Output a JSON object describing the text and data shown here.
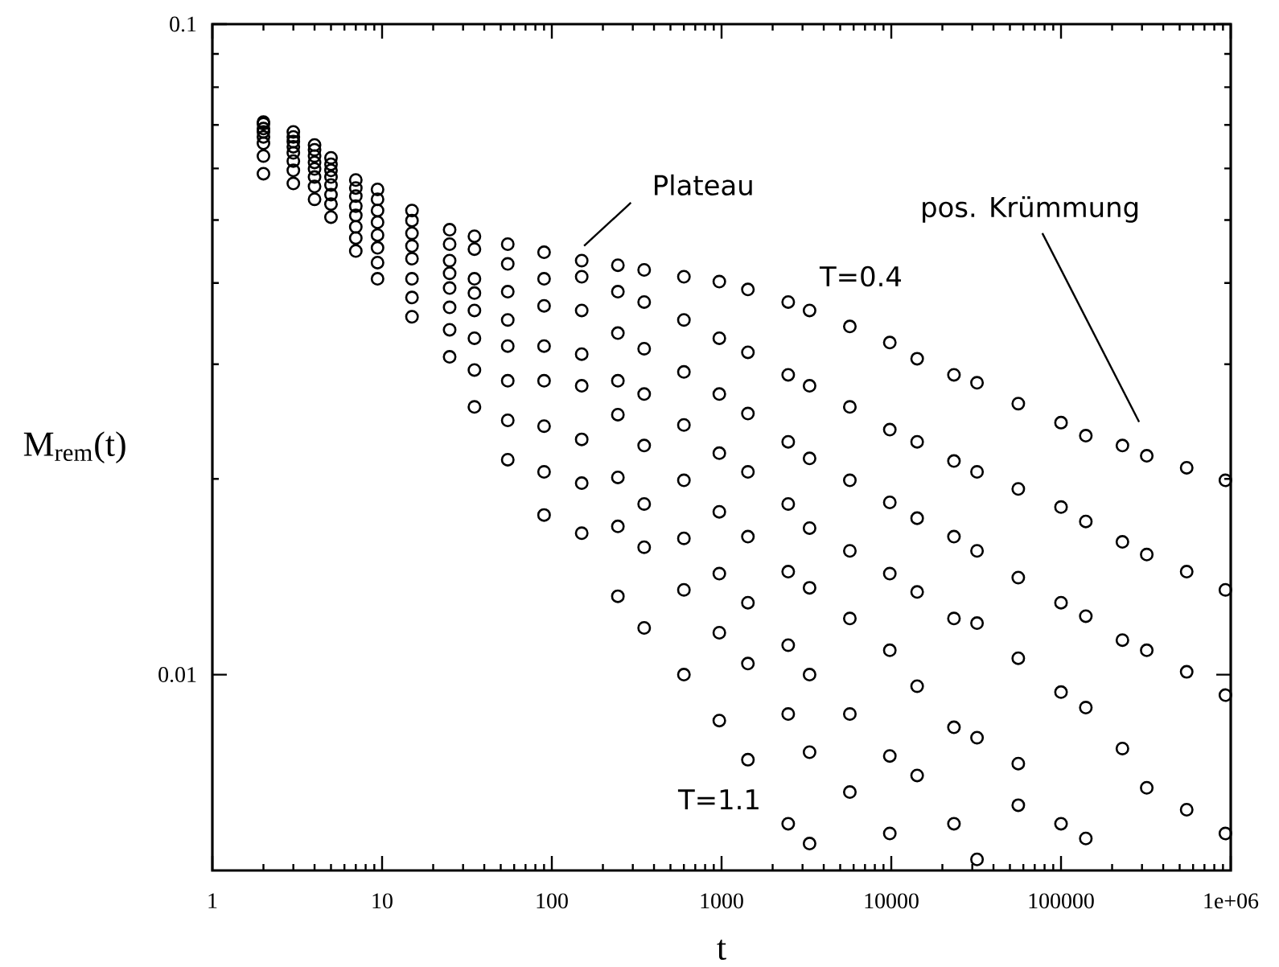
{
  "chart_data": {
    "type": "scatter",
    "xlabel": "t",
    "ylabel": "M$_{rem}$(t)",
    "log": "xy",
    "marker": "circle",
    "xlim": [
      1,
      1000000
    ],
    "ylim": [
      0.005,
      0.1
    ],
    "xticks": [
      1,
      10,
      100,
      1000,
      10000,
      100000,
      {
        "value": 1000000,
        "label": "1e+06"
      }
    ],
    "yticks": [
      0.01,
      0.1
    ],
    "x": [
      2,
      3,
      4,
      5,
      7,
      9.4,
      15,
      25,
      35,
      55,
      90,
      150,
      245,
      350,
      600,
      970,
      1430,
      2470,
      3300,
      5700,
      9800,
      14200,
      23400,
      32000,
      56000,
      100000,
      140000,
      230000,
      320000,
      550000,
      930000
    ],
    "series": [
      {
        "color": "#000000",
        "values": [
          0.0707,
          0.0683,
          0.0652,
          0.0623,
          0.0576,
          0.0557,
          0.0517,
          0.0483,
          0.0472,
          0.0459,
          0.0446,
          0.0433,
          0.0426,
          0.0419,
          0.0409,
          0.0402,
          0.0391,
          0.0374,
          0.0363,
          0.0343,
          0.0324,
          0.0306,
          0.0289,
          0.0281,
          0.0261,
          0.0244,
          0.0233,
          0.0225,
          0.0217,
          0.0208,
          0.0199
        ]
      },
      {
        "color": "#000000",
        "values": [
          0.0703,
          0.0671,
          0.0641,
          0.0609,
          0.056,
          0.0538,
          0.0499,
          0.0459,
          0.0451,
          0.0428,
          0.0406,
          0.0409,
          0.0388,
          0.0374,
          0.0351,
          0.0329,
          0.0313,
          0.0289,
          0.0278,
          0.0258,
          0.0238,
          0.0228,
          0.0213,
          0.0205,
          0.0193,
          0.0181,
          0.0172,
          0.016,
          0.0153,
          0.0144,
          0.0135
        ]
      },
      {
        "color": "#000000",
        "values": [
          0.0691,
          0.066,
          0.0627,
          0.0596,
          0.0544,
          0.0517,
          0.0477,
          0.0433,
          0.0406,
          0.0388,
          0.0369,
          0.0363,
          0.0335,
          0.0317,
          0.0292,
          0.027,
          0.0252,
          0.0228,
          0.0215,
          0.0199,
          0.0184,
          0.0174,
          0.0163,
          0.0155,
          0.0141,
          0.0129,
          0.0123,
          0.0113,
          0.0109,
          0.0101,
          0.0093
        ]
      },
      {
        "color": "#000000",
        "values": [
          0.0683,
          0.0648,
          0.0613,
          0.0582,
          0.0525,
          0.0496,
          0.0456,
          0.0414,
          0.0386,
          0.0351,
          0.032,
          0.0311,
          0.0283,
          0.027,
          0.0242,
          0.0219,
          0.0205,
          0.0183,
          0.0168,
          0.0155,
          0.0143,
          0.0134,
          0.0122,
          0.012,
          0.0106,
          0.0094,
          0.0089,
          0.0077,
          0.0067,
          0.0062,
          0.0057
        ]
      },
      {
        "color": "#000000",
        "values": [
          0.0671,
          0.0634,
          0.0599,
          0.0566,
          0.0508,
          0.0474,
          0.0436,
          0.0393,
          0.0363,
          0.032,
          0.0283,
          0.0278,
          0.0251,
          0.0225,
          0.0199,
          0.0178,
          0.0163,
          0.0144,
          0.0136,
          0.0122,
          0.0109,
          0.0096,
          0.0083,
          0.008,
          0.0073,
          null,
          0.0056,
          null,
          null,
          null,
          null
        ]
      },
      {
        "color": "#000000",
        "values": [
          0.0656,
          0.0616,
          0.0582,
          0.0547,
          0.0488,
          0.0453,
          0.0406,
          0.0367,
          0.0329,
          0.0283,
          0.0241,
          0.023,
          0.0201,
          0.0183,
          0.0162,
          0.0143,
          0.0129,
          0.0111,
          0.01,
          0.0087,
          0.0075,
          0.007,
          0.0059,
          null,
          0.0063,
          0.0059,
          null,
          null,
          null,
          null,
          null
        ]
      },
      {
        "color": "#000000",
        "values": [
          0.0627,
          0.0596,
          0.0563,
          0.0529,
          0.0469,
          0.043,
          0.038,
          0.0339,
          0.0294,
          0.0246,
          0.0205,
          0.0197,
          0.0169,
          0.0157,
          0.0135,
          0.0116,
          0.0104,
          0.0087,
          0.0076,
          0.0066,
          0.0057,
          null,
          null,
          0.0052,
          null,
          null,
          null,
          null,
          null,
          null,
          null
        ]
      },
      {
        "color": "#000000",
        "values": [
          0.0589,
          0.0569,
          0.0538,
          0.0505,
          0.0448,
          0.0406,
          0.0355,
          0.0308,
          0.0258,
          0.0214,
          0.0176,
          0.0165,
          0.0132,
          0.0118,
          0.01,
          0.0085,
          0.0074,
          0.0059,
          0.0055,
          null,
          null,
          null,
          null,
          null,
          null,
          null,
          null,
          null,
          null,
          null,
          null
        ]
      }
    ],
    "annotations": [
      "Plateau",
      "pos. Krümmung",
      "T=0.4",
      "T=1.1"
    ]
  }
}
